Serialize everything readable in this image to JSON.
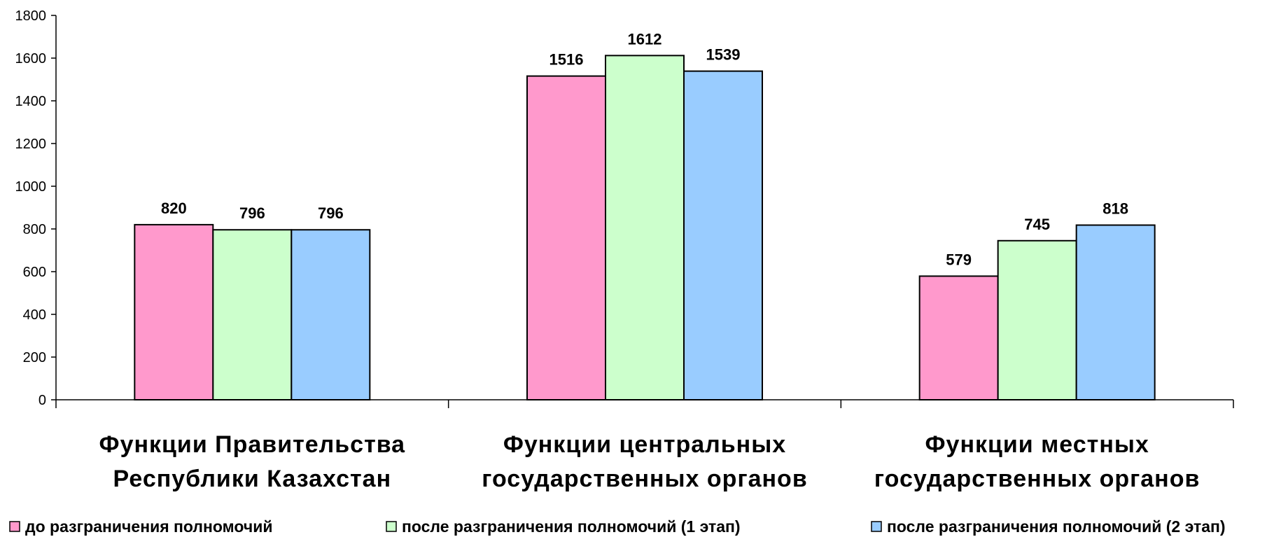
{
  "chart_data": {
    "type": "bar",
    "title": "",
    "xlabel": "",
    "ylabel": "",
    "ylim": [
      0,
      1800
    ],
    "yticks": [
      0,
      200,
      400,
      600,
      800,
      1000,
      1200,
      1400,
      1600,
      1800
    ],
    "grid": false,
    "legend_position": "bottom",
    "categories": [
      [
        "Функции Правительства",
        "Республики Казахстан"
      ],
      [
        "Функции центральных",
        "государственных органов"
      ],
      [
        "Функции местных",
        "государственных органов"
      ]
    ],
    "series": [
      {
        "name": "до разграничения полномочий",
        "color": "#ff99cc",
        "values": [
          820,
          1516,
          579
        ]
      },
      {
        "name": "после разграничения полномочий (1 этап)",
        "color": "#ccffcc",
        "values": [
          796,
          1612,
          745
        ]
      },
      {
        "name": "после разграничения полномочий (2 этап)",
        "color": "#99ccff",
        "values": [
          796,
          1539,
          818
        ]
      }
    ]
  }
}
